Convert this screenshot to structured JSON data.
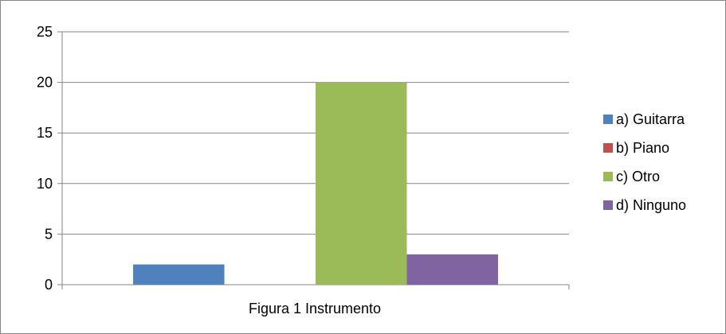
{
  "chart_data": {
    "type": "bar",
    "xlabel": "Figura 1 Instrumento",
    "ylabel": "",
    "ylim": [
      0,
      25
    ],
    "yticks": [
      0,
      5,
      10,
      15,
      20,
      25
    ],
    "grid": true,
    "legend_position": "right",
    "series": [
      {
        "name": "a) Guitarra",
        "color": "#4f81bd",
        "value": 2
      },
      {
        "name": "b) Piano",
        "color": "#c0504d",
        "value": 0
      },
      {
        "name": "c) Otro",
        "color": "#9bbb59",
        "value": 20
      },
      {
        "name": "d) Ninguno",
        "color": "#8064a2",
        "value": 3
      }
    ]
  }
}
